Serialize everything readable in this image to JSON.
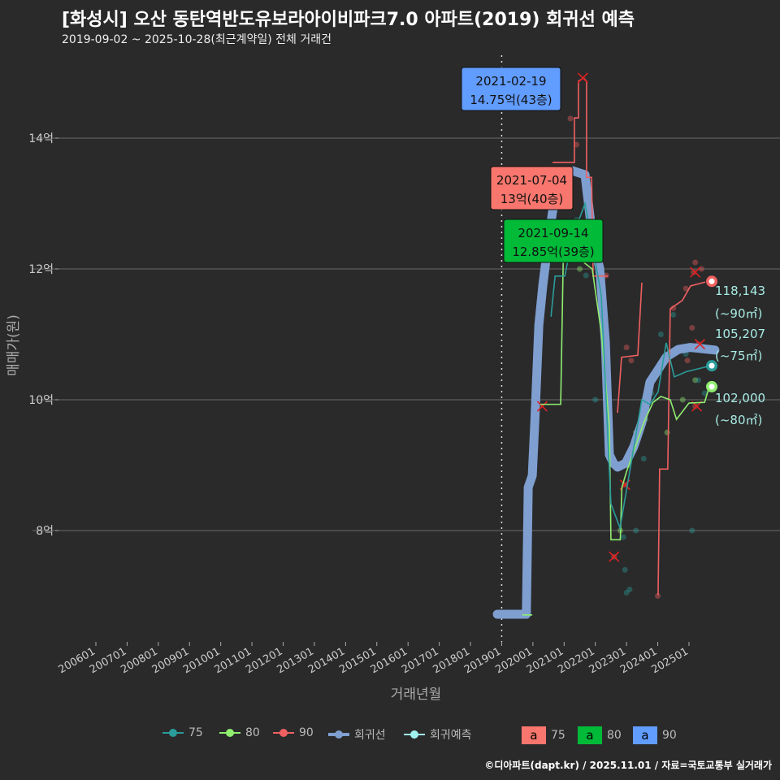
{
  "title": "[화성시] 오산 동탄역반도유보라아이비파크7.0 아파트(2019) 회귀선 예측",
  "subtitle": "2019-09-02 ~ 2025-10-28(최근계약일) 전체 거래건",
  "caption": "©디아파트(dapt.kr) / 2025.11.01 / 자료=국토교통부 실거래가",
  "colors": {
    "bg": "#2a2a2b",
    "c75": "#2a9d9a",
    "c80": "#90ee70",
    "c90": "#f06060",
    "reg": "#7f9fd0",
    "pred": "#a0f0f0"
  },
  "legend": {
    "items": [
      "75",
      "80",
      "90",
      "회귀선",
      "회귀예측"
    ],
    "boxes": [
      {
        "letter": "a",
        "label": "75",
        "color": "#f8766d"
      },
      {
        "letter": "a",
        "label": "80",
        "color": "#00ba38"
      },
      {
        "letter": "a",
        "label": "90",
        "color": "#619cff"
      }
    ]
  },
  "chart_data": {
    "type": "line",
    "xlabel": "거래년월",
    "ylabel": "매매가(원)",
    "xlim": [
      2004.0,
      2026.9
    ],
    "ylim": [
      6.3,
      15.8
    ],
    "yticks": [
      {
        "v": 8,
        "label": "8억"
      },
      {
        "v": 10,
        "label": "10억"
      },
      {
        "v": 12,
        "label": "12억"
      },
      {
        "v": 14,
        "label": "14억"
      }
    ],
    "xticks": [
      "200601",
      "200701",
      "200801",
      "200901",
      "201001",
      "201101",
      "201201",
      "201301",
      "201401",
      "201501",
      "201601",
      "201701",
      "201801",
      "201901",
      "202001",
      "202101",
      "202201",
      "202301",
      "202401",
      "202501"
    ],
    "vline": 2019.0,
    "regression": [
      [
        2018.86,
        6.72
      ],
      [
        2019.79,
        6.72
      ],
      [
        2019.85,
        8.66
      ],
      [
        2019.98,
        8.84
      ],
      [
        2020.06,
        9.65
      ],
      [
        2020.19,
        11.14
      ],
      [
        2020.32,
        11.76
      ],
      [
        2020.42,
        12.14
      ],
      [
        2020.63,
        12.88
      ],
      [
        2020.89,
        13.38
      ],
      [
        2021.28,
        13.5
      ],
      [
        2021.67,
        13.44
      ],
      [
        2021.93,
        12.39
      ],
      [
        2022.14,
        12.01
      ],
      [
        2022.24,
        11.39
      ],
      [
        2022.32,
        10.89
      ],
      [
        2022.45,
        9.16
      ],
      [
        2022.58,
        9.03
      ],
      [
        2022.71,
        8.97
      ],
      [
        2022.97,
        9.03
      ],
      [
        2023.23,
        9.28
      ],
      [
        2023.49,
        9.65
      ],
      [
        2023.75,
        10.27
      ],
      [
        2024.01,
        10.46
      ],
      [
        2024.27,
        10.65
      ],
      [
        2024.66,
        10.77
      ],
      [
        2025.05,
        10.8
      ],
      [
        2025.83,
        10.76
      ]
    ],
    "series": [
      {
        "name": "90",
        "segments": [
          [
            [
              2020.63,
              13.63
            ],
            [
              2021.33,
              13.63
            ],
            [
              2021.33,
              14.31
            ],
            [
              2021.46,
              14.31
            ],
            [
              2021.46,
              14.87
            ],
            [
              2021.62,
              14.92
            ],
            [
              2021.72,
              14.87
            ],
            [
              2021.72,
              13.4
            ],
            [
              2021.88,
              13.4
            ],
            [
              2021.93,
              11.89
            ],
            [
              2022.4,
              11.89
            ]
          ],
          [
            [
              2022.71,
              9.8
            ],
            [
              2022.84,
              10.65
            ],
            [
              2023.36,
              10.68
            ],
            [
              2023.49,
              11.79
            ]
          ],
          [
            [
              2024.01,
              7.01
            ],
            [
              2024.06,
              8.94
            ],
            [
              2024.32,
              8.94
            ],
            [
              2024.4,
              11.39
            ],
            [
              2024.79,
              11.52
            ],
            [
              2025.05,
              11.74
            ],
            [
              2025.52,
              11.8
            ]
          ]
        ],
        "points": [
          [
            2021.2,
            14.3
          ],
          [
            2021.4,
            13.9
          ],
          [
            2022.35,
            11.9
          ],
          [
            2023.0,
            10.8
          ],
          [
            2023.15,
            10.6
          ],
          [
            2024.5,
            11.4
          ],
          [
            2024.9,
            11.7
          ],
          [
            2025.2,
            12.1
          ],
          [
            2025.4,
            12.0
          ],
          [
            2025.1,
            11.1
          ],
          [
            2025.3,
            10.8
          ],
          [
            2024.0,
            7.0
          ],
          [
            2025.2,
            9.9
          ],
          [
            2022.6,
            7.6
          ],
          [
            2022.95,
            8.7
          ],
          [
            2025.15,
            11.95
          ],
          [
            2024.95,
            10.6
          ],
          [
            2025.3,
            10.85
          ]
        ],
        "crosses": [
          [
            2021.6,
            14.92
          ],
          [
            2022.6,
            7.6
          ],
          [
            2022.95,
            8.7
          ],
          [
            2020.3,
            9.9
          ],
          [
            2025.2,
            11.95
          ],
          [
            2025.35,
            10.85
          ],
          [
            2025.25,
            9.9
          ]
        ],
        "end": [
          2025.73,
          11.81
        ],
        "end_label": "118,143",
        "end_area": "(~90㎡)"
      },
      {
        "name": "80",
        "segments": [
          [
            [
              2019.66,
              6.71
            ],
            [
              2019.98,
              6.71
            ]
          ],
          [
            [
              2020.24,
              9.93
            ],
            [
              2020.89,
              9.93
            ],
            [
              2020.97,
              12.09
            ],
            [
              2021.15,
              12.2
            ],
            [
              2021.36,
              12.2
            ],
            [
              2021.9,
              12.0
            ],
            [
              2022.2,
              11.0
            ],
            [
              2022.45,
              9.6
            ],
            [
              2022.5,
              7.86
            ],
            [
              2022.8,
              7.86
            ],
            [
              2022.85,
              8.66
            ],
            [
              2023.0,
              8.9
            ],
            [
              2023.3,
              9.3
            ],
            [
              2023.55,
              9.65
            ],
            [
              2023.85,
              9.96
            ],
            [
              2024.1,
              10.05
            ],
            [
              2024.4,
              10.0
            ],
            [
              2024.6,
              9.7
            ],
            [
              2025.0,
              9.95
            ],
            [
              2025.5,
              9.96
            ],
            [
              2025.65,
              10.2
            ]
          ]
        ],
        "points": [
          [
            2021.2,
            12.4
          ],
          [
            2021.5,
            12.0
          ],
          [
            2022.8,
            8.0
          ],
          [
            2023.05,
            9.0
          ],
          [
            2023.3,
            9.5
          ],
          [
            2023.6,
            9.7
          ],
          [
            2024.3,
            9.5
          ],
          [
            2025.2,
            10.3
          ],
          [
            2024.8,
            10.0
          ]
        ],
        "crosses": [],
        "end": [
          2025.73,
          10.2
        ],
        "end_label": "102,000",
        "end_area": "(~80㎡)"
      },
      {
        "name": "75",
        "segments": [
          [
            [
              2020.58,
              11.27
            ],
            [
              2020.71,
              11.89
            ],
            [
              2021.02,
              11.89
            ],
            [
              2021.28,
              12.5
            ],
            [
              2021.67,
              13.0
            ],
            [
              2022.19,
              11.6
            ],
            [
              2022.5,
              8.41
            ],
            [
              2022.79,
              8.04
            ],
            [
              2023.1,
              8.9
            ],
            [
              2023.49,
              10.0
            ],
            [
              2023.75,
              9.93
            ],
            [
              2024.01,
              10.12
            ],
            [
              2024.27,
              10.87
            ],
            [
              2024.53,
              10.35
            ],
            [
              2024.92,
              10.43
            ],
            [
              2025.7,
              10.52
            ]
          ]
        ],
        "points": [
          [
            2021.4,
            12.75
          ],
          [
            2021.7,
            11.9
          ],
          [
            2022.0,
            10.0
          ],
          [
            2022.9,
            7.9
          ],
          [
            2022.95,
            7.4
          ],
          [
            2023.0,
            7.05
          ],
          [
            2023.1,
            7.1
          ],
          [
            2023.3,
            8.0
          ],
          [
            2023.55,
            9.1
          ],
          [
            2024.1,
            11.0
          ],
          [
            2024.5,
            11.3
          ],
          [
            2024.9,
            10.7
          ],
          [
            2025.1,
            8.0
          ],
          [
            2025.3,
            10.3
          ],
          [
            2025.5,
            10.1
          ],
          [
            2023.8,
            10.1
          ]
        ],
        "crosses": [],
        "end": [
          2025.73,
          10.52
        ],
        "end_label": "105,207",
        "end_area": "(~75㎡)"
      }
    ],
    "annotations": [
      {
        "date": "2021-02-19",
        "text": "14.75억(43층)",
        "color": "#619cff"
      },
      {
        "date": "2021-07-04",
        "text": "13억(40층)",
        "color": "#f8766d"
      },
      {
        "date": "2021-09-14",
        "text": "12.85억(39층)",
        "color": "#00ba38"
      }
    ]
  }
}
